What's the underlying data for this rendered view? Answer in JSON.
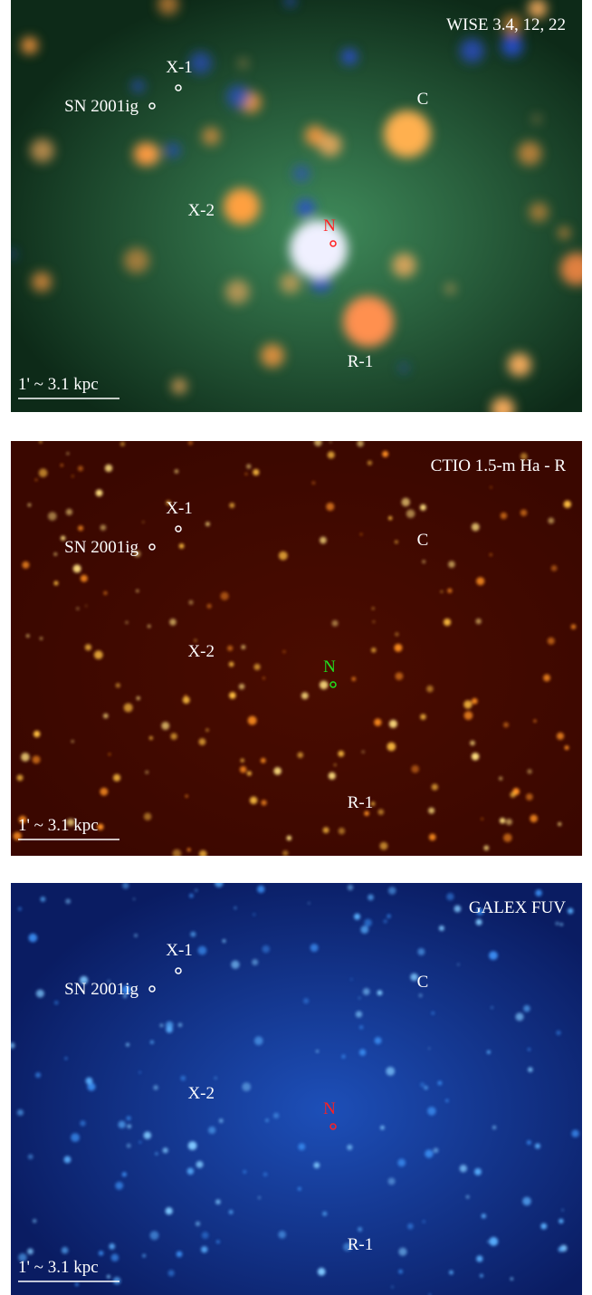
{
  "panels": [
    {
      "title": "WISE 3.4, 12, 22",
      "labels": [
        "X-1",
        "SN 2001ig",
        "C",
        "X-2",
        "N",
        "R-1"
      ],
      "scale": "1' ~ 3.1 kpc"
    },
    {
      "title": "CTIO 1.5-m Ha - R",
      "labels": [
        "X-1",
        "SN 2001ig",
        "C",
        "X-2",
        "N",
        "R-1"
      ],
      "scale": "1' ~ 3.1 kpc"
    },
    {
      "title": "GALEX FUV",
      "labels": [
        "X-1",
        "SN 2001ig",
        "C",
        "X-2",
        "N",
        "R-1"
      ],
      "scale": "1' ~ 3.1 kpc"
    }
  ]
}
